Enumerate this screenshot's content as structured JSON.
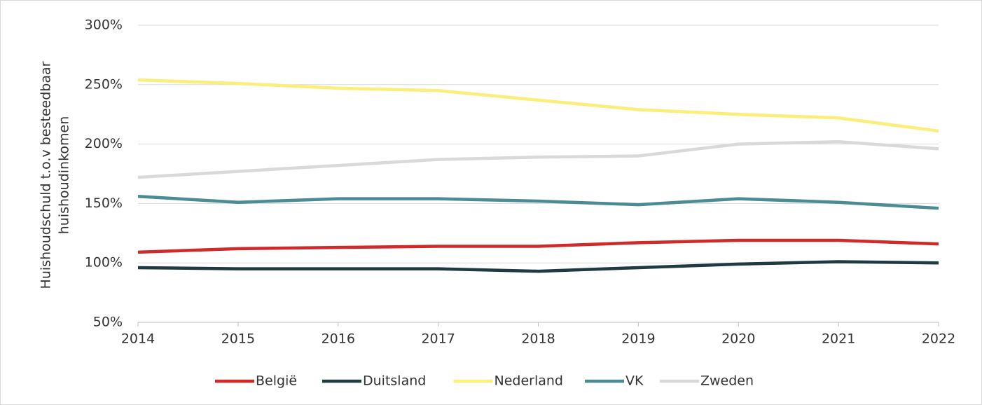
{
  "chart_data": {
    "type": "line",
    "y_label": [
      "Huishoudschuld t.o.v besteedbaar",
      "huishoudinkomen"
    ],
    "x": [
      2014,
      2015,
      2016,
      2017,
      2018,
      2019,
      2020,
      2021,
      2022
    ],
    "xlim": [
      2014,
      2022
    ],
    "xticks": [
      2014,
      2015,
      2016,
      2017,
      2018,
      2019,
      2020,
      2021,
      2022
    ],
    "ylim": [
      50,
      300
    ],
    "yticks": [
      {
        "value": 50,
        "label": "50%"
      },
      {
        "value": 100,
        "label": "100%"
      },
      {
        "value": 150,
        "label": "150%"
      },
      {
        "value": 200,
        "label": "200%"
      },
      {
        "value": 250,
        "label": "250%"
      },
      {
        "value": 300,
        "label": "300%"
      }
    ],
    "grid": true,
    "legend": "bottom",
    "series": [
      {
        "name": "België",
        "color": "#d02b2b",
        "values": [
          109,
          112,
          113,
          114,
          114,
          117,
          119,
          119,
          116
        ]
      },
      {
        "name": "Duitsland",
        "color": "#1f3a40",
        "values": [
          96,
          95,
          95,
          95,
          93,
          96,
          99,
          101,
          100
        ]
      },
      {
        "name": "Nederland",
        "color": "#fbee7a",
        "values": [
          254,
          251,
          247,
          245,
          237,
          229,
          225,
          222,
          211
        ]
      },
      {
        "name": "VK",
        "color": "#4a8b94",
        "values": [
          156,
          151,
          154,
          154,
          152,
          149,
          154,
          151,
          146
        ]
      },
      {
        "name": "Zweden",
        "color": "#d9d9d9",
        "values": [
          172,
          177,
          182,
          187,
          189,
          190,
          200,
          202,
          196
        ]
      }
    ]
  }
}
